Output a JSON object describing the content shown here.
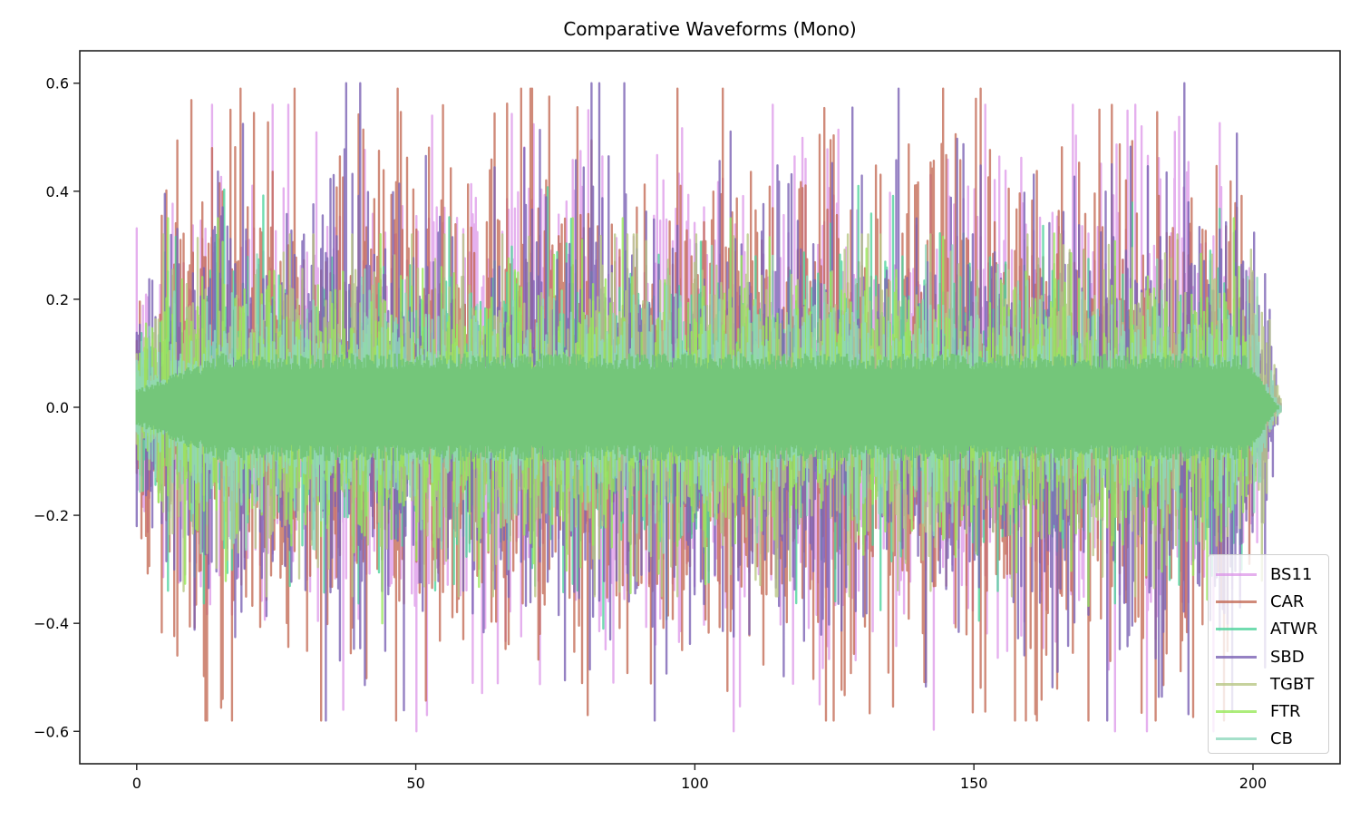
{
  "chart_data": {
    "type": "line",
    "title": "Comparative Waveforms (Mono)",
    "xlabel": "",
    "ylabel": "",
    "xlim": [
      -10.2,
      215.6
    ],
    "ylim": [
      -0.66,
      0.66
    ],
    "xticks": [
      0,
      50,
      100,
      150,
      200
    ],
    "xtick_labels": [
      "0",
      "50",
      "100",
      "150",
      "200"
    ],
    "yticks": [
      -0.6,
      -0.4,
      -0.2,
      0.0,
      0.2,
      0.4,
      0.6
    ],
    "ytick_labels": [
      "−0.6",
      "−0.4",
      "−0.2",
      "0.0",
      "0.2",
      "0.4",
      "0.6"
    ],
    "grid": false,
    "legend_position": "lower right",
    "series": [
      {
        "name": "BS11",
        "color": "#DA8EE7",
        "alpha": 0.7,
        "duration": 203.5,
        "typical_amp": 0.27,
        "max": 0.56,
        "min": -0.6,
        "notable_peaks": [
          [
            13.5,
            0.56
          ],
          [
            181,
            -0.6
          ],
          [
            186,
            0.51
          ],
          [
            37,
            -0.56
          ],
          [
            52,
            -0.57
          ]
        ]
      },
      {
        "name": "CAR",
        "color": "#C0634C",
        "alpha": 0.75,
        "duration": 202.0,
        "typical_amp": 0.3,
        "max": 0.59,
        "min": -0.58,
        "notable_peaks": [
          [
            18.6,
            0.59
          ],
          [
            123.5,
            -0.58
          ],
          [
            13.5,
            0.48
          ],
          [
            194.8,
            -0.58
          ],
          [
            80.8,
            -0.57
          ]
        ]
      },
      {
        "name": "ATWR",
        "color": "#4FD39C",
        "alpha": 0.8,
        "duration": 202.0,
        "typical_amp": 0.17,
        "max": 0.41,
        "min": -0.41,
        "notable_peaks": [
          [
            129.3,
            0.41
          ],
          [
            83.6,
            -0.41
          ]
        ]
      },
      {
        "name": "SBD",
        "color": "#7A62B4",
        "alpha": 0.8,
        "duration": 205.0,
        "typical_amp": 0.25,
        "max": 0.6,
        "min": -0.58,
        "notable_peaks": [
          [
            187.7,
            0.6
          ],
          [
            136.5,
            0.59
          ],
          [
            92.8,
            -0.58
          ],
          [
            165,
            -0.49
          ]
        ]
      },
      {
        "name": "TGBT",
        "color": "#B8C784",
        "alpha": 0.8,
        "duration": 205.0,
        "typical_amp": 0.17,
        "max": 0.32,
        "min": -0.35,
        "notable_peaks": [
          [
            38.6,
            0.32
          ]
        ]
      },
      {
        "name": "FTR",
        "color": "#99E85A",
        "alpha": 0.8,
        "duration": 202.5,
        "typical_amp": 0.15,
        "max": 0.35,
        "min": -0.4,
        "notable_peaks": [
          [
            44,
            -0.4
          ],
          [
            197.5,
            0.26
          ]
        ]
      },
      {
        "name": "CB",
        "color": "#8ED8BD",
        "alpha": 0.8,
        "duration": 205.0,
        "typical_amp": 0.12,
        "max": 0.3,
        "min": -0.3,
        "notable_peaks": []
      }
    ],
    "core_fill_color": "#74C67A"
  }
}
